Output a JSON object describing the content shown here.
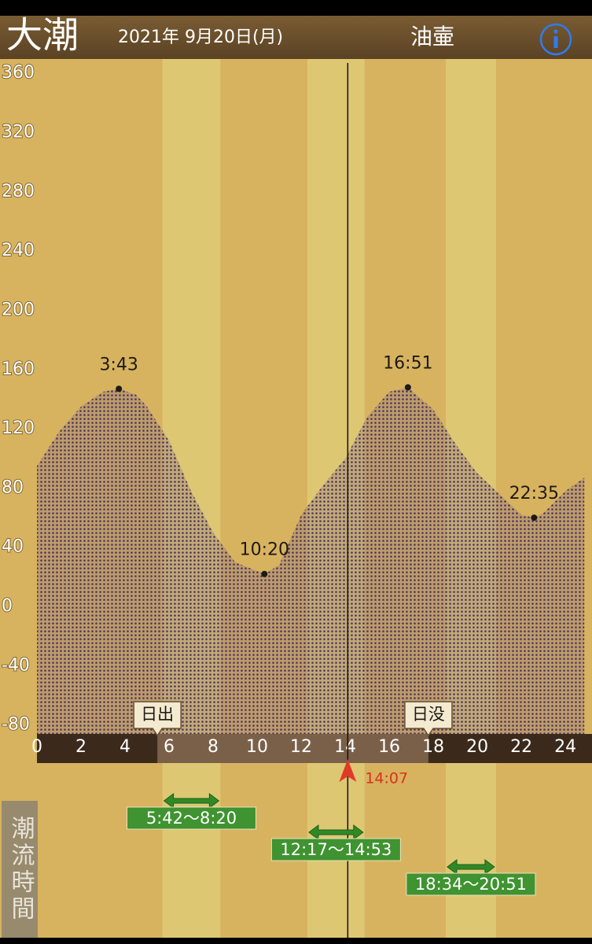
{
  "header": {
    "tide_name": "大潮",
    "date": "2021年 9月20日(月)",
    "location": "油壷"
  },
  "chart_data": {
    "type": "area",
    "x": [
      0,
      1,
      2,
      3,
      3.72,
      4.5,
      5,
      6,
      7,
      8,
      9,
      10.33,
      11,
      12,
      13,
      14,
      15,
      16,
      16.85,
      18,
      19,
      20,
      21,
      22,
      22.58,
      23,
      24,
      24.86
    ],
    "values": [
      95,
      118,
      135,
      145,
      147,
      143,
      135,
      112,
      78,
      50,
      30,
      22,
      28,
      62,
      82,
      100,
      128,
      145,
      148,
      133,
      110,
      90,
      76,
      62,
      60,
      63,
      78,
      87
    ],
    "color": "#4a3558",
    "xlim": [
      0,
      25.21
    ],
    "xticks": [
      0,
      2,
      4,
      6,
      8,
      10,
      12,
      14,
      16,
      18,
      20,
      22,
      24
    ],
    "ylim": [
      -86,
      367
    ],
    "yticks": [
      -80,
      -40,
      0,
      40,
      80,
      120,
      160,
      200,
      240,
      280,
      320,
      360
    ],
    "extremes": [
      {
        "time": "3:43",
        "x": 3.72,
        "value": 147
      },
      {
        "time": "10:20",
        "x": 10.33,
        "value": 22
      },
      {
        "time": "16:51",
        "x": 16.85,
        "value": 148
      },
      {
        "time": "22:35",
        "x": 22.58,
        "value": 60
      }
    ],
    "sunrise": {
      "label": "日出",
      "x": 5.47
    },
    "sunset": {
      "label": "日没",
      "x": 17.78
    },
    "current_time": {
      "label": "14:07",
      "x": 14.117
    },
    "flow": {
      "label": "潮流時間",
      "periods": [
        {
          "label": "5:42〜8:20",
          "start": 5.7,
          "end": 8.333
        },
        {
          "label": "12:17〜14:53",
          "start": 12.283,
          "end": 14.883
        },
        {
          "label": "18:34〜20:51",
          "start": 18.567,
          "end": 20.85
        }
      ]
    }
  }
}
